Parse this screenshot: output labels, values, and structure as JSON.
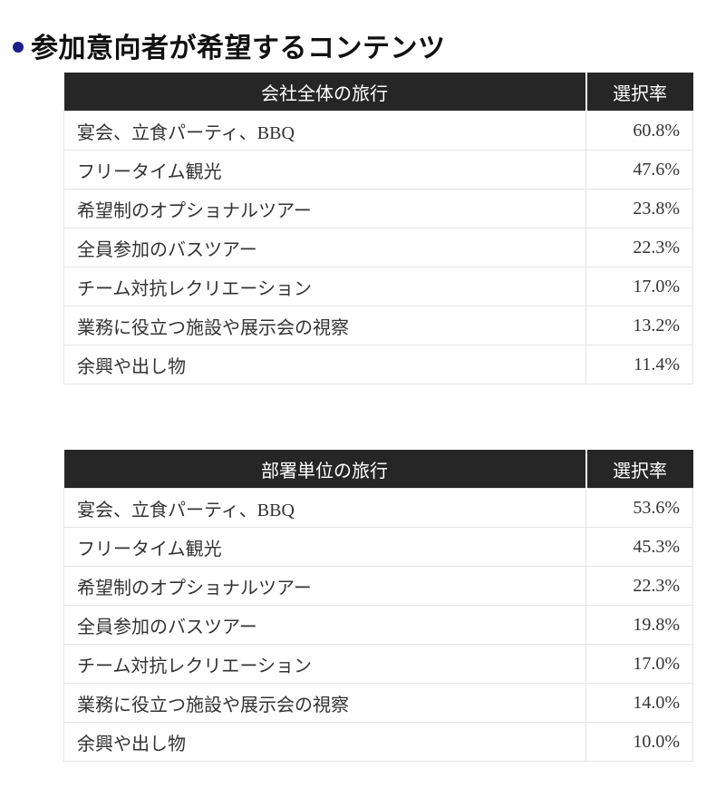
{
  "title": "参加意向者が希望するコンテンツ",
  "tables": [
    {
      "item_header": "会社全体の旅行",
      "rate_header": "選択率",
      "rows": [
        {
          "item": "宴会、立食パーティ、BBQ",
          "rate": "60.8%"
        },
        {
          "item": "フリータイム観光",
          "rate": "47.6%"
        },
        {
          "item": "希望制のオプショナルツアー",
          "rate": "23.8%"
        },
        {
          "item": "全員参加のバスツアー",
          "rate": "22.3%"
        },
        {
          "item": "チーム対抗レクリエーション",
          "rate": "17.0%"
        },
        {
          "item": "業務に役立つ施設や展示会の視察",
          "rate": "13.2%"
        },
        {
          "item": "余興や出し物",
          "rate": "11.4%"
        }
      ]
    },
    {
      "item_header": "部署単位の旅行",
      "rate_header": "選択率",
      "rows": [
        {
          "item": "宴会、立食パーティ、BBQ",
          "rate": "53.6%"
        },
        {
          "item": "フリータイム観光",
          "rate": "45.3%"
        },
        {
          "item": "希望制のオプショナルツアー",
          "rate": "22.3%"
        },
        {
          "item": "全員参加のバスツアー",
          "rate": "19.8%"
        },
        {
          "item": "チーム対抗レクリエーション",
          "rate": "17.0%"
        },
        {
          "item": "業務に役立つ施設や展示会の視察",
          "rate": "14.0%"
        },
        {
          "item": "余興や出し物",
          "rate": "10.0%"
        }
      ]
    }
  ]
}
